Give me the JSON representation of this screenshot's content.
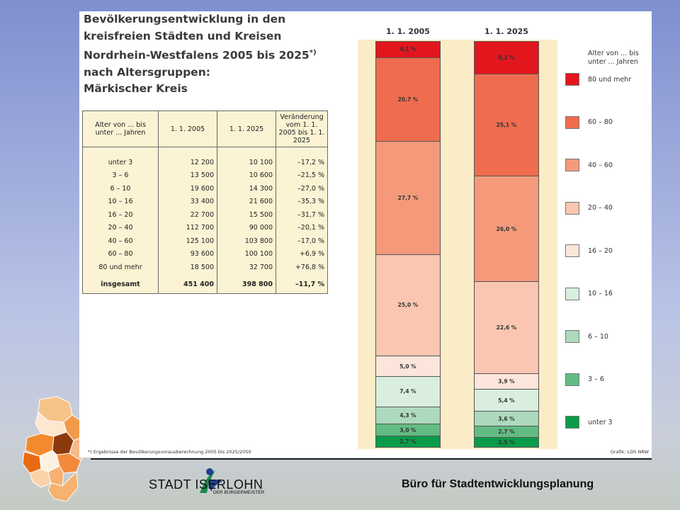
{
  "title": {
    "line1": "Bevölkerungsentwicklung in den",
    "line2": "kreisfreien Städten und Kreisen",
    "line3": "Nordrhein-Westfalens 2005 bis 2025",
    "line3_mark": "*)",
    "line4": "nach Altersgruppen:",
    "line5": "Märkischer Kreis"
  },
  "table": {
    "headers": [
      "Alter von ... bis unter ... Jahren",
      "1. 1. 2005",
      "1. 1. 2025",
      "Veränderung vom 1. 1. 2005 bis 1. 1. 2025"
    ],
    "rows": [
      [
        "unter 3",
        "12 200",
        "10 100",
        "–17,2 %"
      ],
      [
        "3 – 6",
        "13 500",
        "10 600",
        "–21,5 %"
      ],
      [
        "6 – 10",
        "19 600",
        "14 300",
        "–27,0 %"
      ],
      [
        "10 – 16",
        "33 400",
        "21 600",
        "–35,3 %"
      ],
      [
        "16 – 20",
        "22 700",
        "15 500",
        "–31,7 %"
      ],
      [
        "20 – 40",
        "112 700",
        "90 000",
        "–20,1 %"
      ],
      [
        "40 – 60",
        "125 100",
        "103 800",
        "–17,0 %"
      ],
      [
        "60 – 80",
        "93 600",
        "100 100",
        "+6,9 %"
      ],
      [
        "80 und mehr",
        "18 500",
        "32 700",
        "+76,8 %"
      ],
      [
        "insgesamt",
        "451 400",
        "398 800",
        "–11,7 %"
      ]
    ]
  },
  "chart_data": {
    "type": "bar",
    "stacked": true,
    "percent": true,
    "categories": [
      "1. 1. 2005",
      "1. 1. 2025"
    ],
    "legend_title": "Alter von ... bis unter ... Jahren",
    "series": [
      {
        "name": "80 und mehr",
        "color": "#e3161e",
        "values": [
          4.1,
          8.2
        ],
        "labels": [
          "4,1 %",
          "8,2 %"
        ]
      },
      {
        "name": "60 – 80",
        "color": "#ef6c4f",
        "values": [
          20.7,
          25.1
        ],
        "labels": [
          "20,7 %",
          "25,1 %"
        ]
      },
      {
        "name": "40 – 60",
        "color": "#f49a7b",
        "values": [
          27.7,
          26.0
        ],
        "labels": [
          "27,7 %",
          "26,0 %"
        ]
      },
      {
        "name": "20 – 40",
        "color": "#fac6b2",
        "values": [
          25.0,
          22.6
        ],
        "labels": [
          "25,0 %",
          "22,6 %"
        ]
      },
      {
        "name": "16 – 20",
        "color": "#fce5da",
        "values": [
          5.0,
          3.9
        ],
        "labels": [
          "5,0 %",
          "3,9 %"
        ]
      },
      {
        "name": "10 – 16",
        "color": "#d9eedf",
        "values": [
          7.4,
          5.4
        ],
        "labels": [
          "7,4 %",
          "5,4 %"
        ]
      },
      {
        "name": "6 – 10",
        "color": "#add9bd",
        "values": [
          4.3,
          3.6
        ],
        "labels": [
          "4,3 %",
          "3,6 %"
        ]
      },
      {
        "name": "3 – 6",
        "color": "#63bb84",
        "values": [
          3.0,
          2.7
        ],
        "labels": [
          "3,0 %",
          "2,7 %"
        ]
      },
      {
        "name": "unter 3",
        "color": "#0a9c48",
        "values": [
          2.7,
          2.5
        ],
        "labels": [
          "2,7 %",
          "2,5 %"
        ]
      }
    ]
  },
  "footnote": "*) Ergebnisse der Bevölkerungsvorausberechnung 2005 bis 2025/2050",
  "credit": "Grafik: LDS NRW",
  "logo": {
    "text": "STADT ISERLOHN",
    "sub": "DER BÜRGERMEISTER"
  },
  "department": "Büro für Stadtentwicklungsplanung"
}
